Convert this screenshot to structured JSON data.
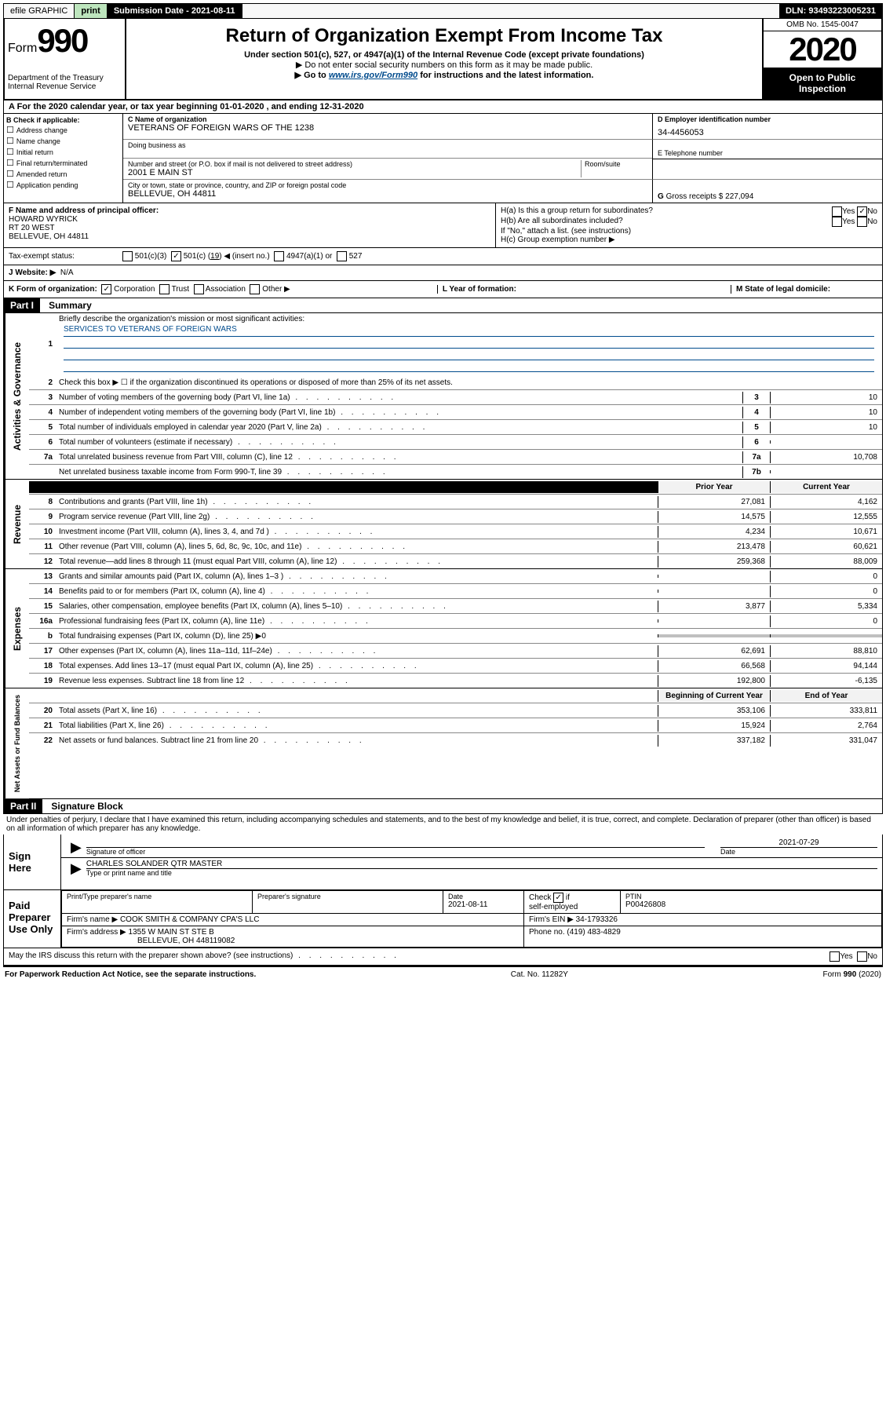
{
  "top": {
    "efile": "efile GRAPHIC",
    "print": "print",
    "submission": "Submission Date - 2021-08-11",
    "dln": "DLN: 93493223005231"
  },
  "header": {
    "form_prefix": "Form",
    "form_num": "990",
    "dept1": "Department of the Treasury",
    "dept2": "Internal Revenue Service",
    "title": "Return of Organization Exempt From Income Tax",
    "sub1": "Under section 501(c), 527, or 4947(a)(1) of the Internal Revenue Code (except private foundations)",
    "sub2": "▶ Do not enter social security numbers on this form as it may be made public.",
    "sub3_pre": "▶ Go to ",
    "sub3_link": "www.irs.gov/Form990",
    "sub3_post": " for instructions and the latest information.",
    "omb": "OMB No. 1545-0047",
    "year": "2020",
    "open1": "Open to Public",
    "open2": "Inspection"
  },
  "section_a": "A For the 2020 calendar year, or tax year beginning 01-01-2020    , and ending 12-31-2020",
  "section_b": {
    "title": "B Check if applicable:",
    "opts": [
      "Address change",
      "Name change",
      "Initial return",
      "Final return/terminated",
      "Amended return",
      "Application pending"
    ]
  },
  "section_c": {
    "name_label": "C Name of organization",
    "name": "VETERANS OF FOREIGN WARS OF THE 1238",
    "dba_label": "Doing business as",
    "dba": "",
    "addr_label": "Number and street (or P.O. box if mail is not delivered to street address)",
    "room_label": "Room/suite",
    "addr": "2001 E MAIN ST",
    "city_label": "City or town, state or province, country, and ZIP or foreign postal code",
    "city": "BELLEVUE, OH  44811"
  },
  "section_d": {
    "label": "D Employer identification number",
    "val": "34-4456053"
  },
  "section_e": {
    "label": "E Telephone number",
    "val": ""
  },
  "section_g": {
    "label": "G",
    "text": "Gross receipts $ 227,094"
  },
  "section_f": {
    "label": "F  Name and address of principal officer:",
    "name": "HOWARD WYRICK",
    "addr1": "RT 20 WEST",
    "addr2": "BELLEVUE, OH  44811"
  },
  "section_h": {
    "ha": "H(a)  Is this a group return for subordinates?",
    "hb": "H(b)  Are all subordinates included?",
    "hb_note": "If \"No,\" attach a list. (see instructions)",
    "hc": "H(c)  Group exemption number ▶",
    "yes": "Yes",
    "no": "No"
  },
  "tax_status": {
    "label": "Tax-exempt status:",
    "c3": "501(c)(3)",
    "c_other_pre": "501(c) (",
    "c_other_num": "19",
    "c_other_post": ") ◀ (insert no.)",
    "a1": "4947(a)(1) or",
    "s527": "527"
  },
  "section_j": {
    "label": "J   Website: ▶",
    "val": "N/A"
  },
  "section_k": {
    "label": "K Form of organization:",
    "corp": "Corporation",
    "trust": "Trust",
    "assoc": "Association",
    "other": "Other ▶",
    "l_label": "L Year of formation:",
    "l_val": "",
    "m_label": "M State of legal domicile:",
    "m_val": ""
  },
  "part1": {
    "header": "Part I",
    "title": "Summary",
    "line1_label": "Briefly describe the organization's mission or most significant activities:",
    "line1_val": "SERVICES TO VETERANS OF FOREIGN WARS",
    "line2": "Check this box ▶ ☐  if the organization discontinued its operations or disposed of more than 25% of its net assets.",
    "tabs": {
      "gov": "Activities & Governance",
      "rev": "Revenue",
      "exp": "Expenses",
      "net": "Net Assets or Fund Balances"
    },
    "rows_gov": [
      {
        "n": "3",
        "label": "Number of voting members of the governing body (Part VI, line 1a)",
        "c": "3",
        "v": "10"
      },
      {
        "n": "4",
        "label": "Number of independent voting members of the governing body (Part VI, line 1b)",
        "c": "4",
        "v": "10"
      },
      {
        "n": "5",
        "label": "Total number of individuals employed in calendar year 2020 (Part V, line 2a)",
        "c": "5",
        "v": "10"
      },
      {
        "n": "6",
        "label": "Total number of volunteers (estimate if necessary)",
        "c": "6",
        "v": ""
      },
      {
        "n": "7a",
        "label": "Total unrelated business revenue from Part VIII, column (C), line 12",
        "c": "7a",
        "v": "10,708"
      },
      {
        "n": "",
        "label": "Net unrelated business taxable income from Form 990-T, line 39",
        "c": "7b",
        "v": ""
      }
    ],
    "hdr_prior": "Prior Year",
    "hdr_curr": "Current Year",
    "rows_rev": [
      {
        "n": "8",
        "label": "Contributions and grants (Part VIII, line 1h)",
        "p": "27,081",
        "c": "4,162"
      },
      {
        "n": "9",
        "label": "Program service revenue (Part VIII, line 2g)",
        "p": "14,575",
        "c": "12,555"
      },
      {
        "n": "10",
        "label": "Investment income (Part VIII, column (A), lines 3, 4, and 7d )",
        "p": "4,234",
        "c": "10,671"
      },
      {
        "n": "11",
        "label": "Other revenue (Part VIII, column (A), lines 5, 6d, 8c, 9c, 10c, and 11e)",
        "p": "213,478",
        "c": "60,621"
      },
      {
        "n": "12",
        "label": "Total revenue—add lines 8 through 11 (must equal Part VIII, column (A), line 12)",
        "p": "259,368",
        "c": "88,009"
      }
    ],
    "rows_exp": [
      {
        "n": "13",
        "label": "Grants and similar amounts paid (Part IX, column (A), lines 1–3 )",
        "p": "",
        "c": "0"
      },
      {
        "n": "14",
        "label": "Benefits paid to or for members (Part IX, column (A), line 4)",
        "p": "",
        "c": "0"
      },
      {
        "n": "15",
        "label": "Salaries, other compensation, employee benefits (Part IX, column (A), lines 5–10)",
        "p": "3,877",
        "c": "5,334"
      },
      {
        "n": "16a",
        "label": "Professional fundraising fees (Part IX, column (A), line 11e)",
        "p": "",
        "c": "0"
      },
      {
        "n": "b",
        "label": "Total fundraising expenses (Part IX, column (D), line 25) ▶0",
        "p": "—shade—",
        "c": "—shade—"
      },
      {
        "n": "17",
        "label": "Other expenses (Part IX, column (A), lines 11a–11d, 11f–24e)",
        "p": "62,691",
        "c": "88,810"
      },
      {
        "n": "18",
        "label": "Total expenses. Add lines 13–17 (must equal Part IX, column (A), line 25)",
        "p": "66,568",
        "c": "94,144"
      },
      {
        "n": "19",
        "label": "Revenue less expenses. Subtract line 18 from line 12",
        "p": "192,800",
        "c": "-6,135"
      }
    ],
    "hdr_begin": "Beginning of Current Year",
    "hdr_end": "End of Year",
    "rows_net": [
      {
        "n": "20",
        "label": "Total assets (Part X, line 16)",
        "p": "353,106",
        "c": "333,811"
      },
      {
        "n": "21",
        "label": "Total liabilities (Part X, line 26)",
        "p": "15,924",
        "c": "2,764"
      },
      {
        "n": "22",
        "label": "Net assets or fund balances. Subtract line 21 from line 20",
        "p": "337,182",
        "c": "331,047"
      }
    ]
  },
  "part2": {
    "header": "Part II",
    "title": "Signature Block",
    "penalty": "Under penalties of perjury, I declare that I have examined this return, including accompanying schedules and statements, and to the best of my knowledge and belief, it is true, correct, and complete. Declaration of preparer (other than officer) is based on all information of which preparer has any knowledge.",
    "sign_here": "Sign Here",
    "sig_officer": "Signature of officer",
    "sig_date": "2021-07-29",
    "date_label": "Date",
    "sig_name": "CHARLES SOLANDER QTR MASTER",
    "sig_name_label": "Type or print name and title",
    "paid": "Paid Preparer Use Only",
    "prep_name_label": "Print/Type preparer's name",
    "prep_sig_label": "Preparer's signature",
    "prep_date_label": "Date",
    "prep_date": "2021-08-11",
    "self_emp": "self-employed",
    "check_if": "Check",
    "if": "if",
    "ptin_label": "PTIN",
    "ptin": "P00426808",
    "firm_name_label": "Firm's name    ▶",
    "firm_name": "COOK SMITH & COMPANY CPA'S LLC",
    "firm_ein_label": "Firm's EIN ▶",
    "firm_ein": "34-1793326",
    "firm_addr_label": "Firm's address ▶",
    "firm_addr1": "1355 W MAIN ST STE B",
    "firm_addr2": "BELLEVUE, OH  448119082",
    "phone_label": "Phone no.",
    "phone": "(419) 483-4829",
    "discuss": "May the IRS discuss this return with the preparer shown above? (see instructions)",
    "yes": "Yes",
    "no": "No"
  },
  "footer": {
    "left": "For Paperwork Reduction Act Notice, see the separate instructions.",
    "mid": "Cat. No. 11282Y",
    "right": "Form 990 (2020)"
  },
  "colors": {
    "link": "#004b8d",
    "shade": "#c0c0c0"
  }
}
